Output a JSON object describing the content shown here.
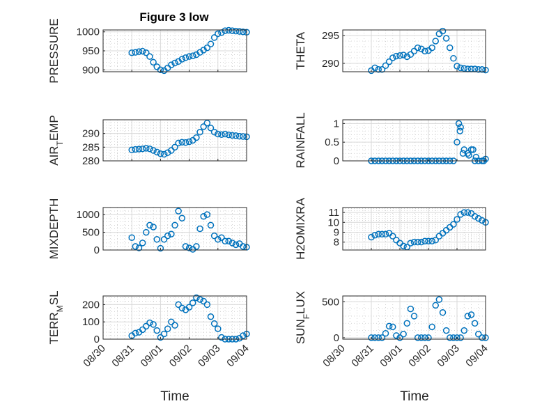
{
  "title": "Figure 3 low",
  "xlabel": "Time",
  "x_ticks": [
    "08/30",
    "08/31",
    "09/01",
    "09/02",
    "09/03",
    "09/04"
  ],
  "colors": {
    "marker": "#0072BD",
    "axes": "#262626"
  },
  "chart_data": [
    {
      "type": "scatter",
      "ylabel": "PRESSURE",
      "ylim": [
        895,
        1005
      ],
      "yticks": [
        "900",
        "950",
        "1000"
      ],
      "ytick_values": [
        900,
        950,
        1000
      ],
      "grid": true,
      "title": "Figure 3 low",
      "x": [
        "08/31 00:00",
        "08/31 03:00",
        "08/31 06:00",
        "08/31 09:00",
        "08/31 12:00",
        "08/31 15:00",
        "08/31 18:00",
        "08/31 21:00",
        "09/01 00:00",
        "09/01 03:00",
        "09/01 06:00",
        "09/01 09:00",
        "09/01 12:00",
        "09/01 15:00",
        "09/01 18:00",
        "09/01 21:00",
        "09/02 00:00",
        "09/02 03:00",
        "09/02 06:00",
        "09/02 09:00",
        "09/02 12:00",
        "09/02 15:00",
        "09/02 18:00",
        "09/02 21:00",
        "09/03 00:00",
        "09/03 03:00",
        "09/03 06:00",
        "09/03 09:00",
        "09/03 12:00",
        "09/03 15:00",
        "09/03 18:00",
        "09/03 21:00",
        "09/04 00:00"
      ],
      "values": [
        945,
        946,
        948,
        949,
        945,
        935,
        920,
        908,
        900,
        898,
        905,
        913,
        918,
        922,
        928,
        932,
        935,
        937,
        940,
        946,
        952,
        958,
        968,
        985,
        995,
        998,
        1003,
        1004,
        1003,
        1002,
        1001,
        1000,
        999
      ]
    },
    {
      "type": "scatter",
      "ylabel": "THETA",
      "ylim": [
        288.5,
        296
      ],
      "yticks": [
        "290",
        "295"
      ],
      "ytick_values": [
        290,
        295
      ],
      "grid": true,
      "x": [
        "08/31 00:00",
        "08/31 03:00",
        "08/31 06:00",
        "08/31 09:00",
        "08/31 12:00",
        "08/31 15:00",
        "08/31 18:00",
        "08/31 21:00",
        "09/01 00:00",
        "09/01 03:00",
        "09/01 06:00",
        "09/01 09:00",
        "09/01 12:00",
        "09/01 15:00",
        "09/01 18:00",
        "09/01 21:00",
        "09/02 00:00",
        "09/02 03:00",
        "09/02 06:00",
        "09/02 09:00",
        "09/02 12:00",
        "09/02 15:00",
        "09/02 18:00",
        "09/02 21:00",
        "09/03 00:00",
        "09/03 03:00",
        "09/03 06:00",
        "09/03 09:00",
        "09/03 12:00",
        "09/03 15:00",
        "09/03 18:00",
        "09/03 21:00",
        "09/04 00:00"
      ],
      "values": [
        288.7,
        289.2,
        288.9,
        288.9,
        289.6,
        290.3,
        291.0,
        291.3,
        291.4,
        291.5,
        291.2,
        291.6,
        292.2,
        292.8,
        292.6,
        292.2,
        292.3,
        292.8,
        294.0,
        295.3,
        295.8,
        294.5,
        292.8,
        290.9,
        289.5,
        289.2,
        289.1,
        289.0,
        289.0,
        289.0,
        288.9,
        288.9,
        288.8
      ]
    },
    {
      "type": "scatter",
      "ylabel": "AIR_TEMP",
      "ylim": [
        280,
        295
      ],
      "yticks": [
        "280",
        "285",
        "290"
      ],
      "ytick_values": [
        280,
        285,
        290
      ],
      "grid": true,
      "x": [
        "08/31 00:00",
        "08/31 03:00",
        "08/31 06:00",
        "08/31 09:00",
        "08/31 12:00",
        "08/31 15:00",
        "08/31 18:00",
        "08/31 21:00",
        "09/01 00:00",
        "09/01 03:00",
        "09/01 06:00",
        "09/01 09:00",
        "09/01 12:00",
        "09/01 15:00",
        "09/01 18:00",
        "09/01 21:00",
        "09/02 00:00",
        "09/02 03:00",
        "09/02 06:00",
        "09/02 09:00",
        "09/02 12:00",
        "09/02 15:00",
        "09/02 18:00",
        "09/02 21:00",
        "09/03 00:00",
        "09/03 03:00",
        "09/03 06:00",
        "09/03 09:00",
        "09/03 12:00",
        "09/03 15:00",
        "09/03 18:00",
        "09/03 21:00",
        "09/04 00:00"
      ],
      "values": [
        284.0,
        284.2,
        284.3,
        284.4,
        284.6,
        284.4,
        283.8,
        283.2,
        282.6,
        282.4,
        283.0,
        283.8,
        285.0,
        286.5,
        286.8,
        286.7,
        287.0,
        287.5,
        288.5,
        290.5,
        292.5,
        293.8,
        292.0,
        290.5,
        289.8,
        289.6,
        289.8,
        289.5,
        289.3,
        289.2,
        289.0,
        288.9,
        288.8
      ]
    },
    {
      "type": "scatter",
      "ylabel": "RAINFALL",
      "ylim": [
        0,
        1.1
      ],
      "yticks": [
        "0",
        "0.5",
        "1"
      ],
      "ytick_values": [
        0,
        0.5,
        1
      ],
      "grid": true,
      "x": [
        "08/31 00:00",
        "08/31 03:00",
        "08/31 06:00",
        "08/31 09:00",
        "08/31 12:00",
        "08/31 15:00",
        "08/31 18:00",
        "08/31 21:00",
        "09/01 00:00",
        "09/01 03:00",
        "09/01 06:00",
        "09/01 09:00",
        "09/01 12:00",
        "09/01 15:00",
        "09/01 18:00",
        "09/01 21:00",
        "09/02 00:00",
        "09/02 03:00",
        "09/02 06:00",
        "09/02 09:00",
        "09/02 12:00",
        "09/02 15:00",
        "09/02 18:00",
        "09/02 21:00",
        "09/03 00:00",
        "09/03 03:00",
        "09/03 06:00",
        "09/03 09:00",
        "09/03 12:00",
        "09/03 15:00",
        "09/03 18:00",
        "09/03 21:00",
        "09/04 00:00",
        "09/03 01:30",
        "09/03 02:30",
        "09/03 05:00",
        "09/03 10:00",
        "09/03 13:30",
        "09/03 16:00",
        "09/03 22:30"
      ],
      "values": [
        0,
        0,
        0,
        0,
        0,
        0,
        0,
        0,
        0,
        0,
        0,
        0,
        0,
        0,
        0,
        0,
        0,
        0,
        0,
        0,
        0,
        0,
        0,
        0,
        0.5,
        0.9,
        0.3,
        0.2,
        0.3,
        0,
        0,
        0,
        0.05,
        1.0,
        0.8,
        0.2,
        0.15,
        0.3,
        0.1,
        0
      ]
    },
    {
      "type": "scatter",
      "ylabel": "MIXDEPTH",
      "ylim": [
        0,
        1200
      ],
      "yticks": [
        "0",
        "500",
        "1000"
      ],
      "ytick_values": [
        0,
        500,
        1000
      ],
      "grid": true,
      "x": [
        "08/31 00:00",
        "08/31 03:00",
        "08/31 06:00",
        "08/31 09:00",
        "08/31 12:00",
        "08/31 15:00",
        "08/31 18:00",
        "08/31 21:00",
        "09/01 00:00",
        "09/01 03:00",
        "09/01 06:00",
        "09/01 09:00",
        "09/01 12:00",
        "09/01 15:00",
        "09/01 18:00",
        "09/01 21:00",
        "09/02 00:00",
        "09/02 03:00",
        "09/02 06:00",
        "09/02 09:00",
        "09/02 12:00",
        "09/02 15:00",
        "09/02 18:00",
        "09/02 21:00",
        "09/03 00:00",
        "09/03 03:00",
        "09/03 06:00",
        "09/03 09:00",
        "09/03 12:00",
        "09/03 15:00",
        "09/03 18:00",
        "09/03 21:00",
        "09/04 00:00"
      ],
      "values": [
        350,
        100,
        60,
        200,
        500,
        700,
        650,
        300,
        50,
        300,
        400,
        450,
        700,
        1100,
        900,
        100,
        60,
        20,
        100,
        600,
        950,
        1000,
        700,
        400,
        300,
        350,
        250,
        250,
        200,
        150,
        180,
        100,
        80
      ]
    },
    {
      "type": "scatter",
      "ylabel": "H2OMIXRA",
      "ylim": [
        7.2,
        11.5
      ],
      "yticks": [
        "8",
        "9",
        "10",
        "11"
      ],
      "ytick_values": [
        8,
        9,
        10,
        11
      ],
      "grid": true,
      "x": [
        "08/31 00:00",
        "08/31 03:00",
        "08/31 06:00",
        "08/31 09:00",
        "08/31 12:00",
        "08/31 15:00",
        "08/31 18:00",
        "08/31 21:00",
        "09/01 00:00",
        "09/01 03:00",
        "09/01 06:00",
        "09/01 09:00",
        "09/01 12:00",
        "09/01 15:00",
        "09/01 18:00",
        "09/01 21:00",
        "09/02 00:00",
        "09/02 03:00",
        "09/02 06:00",
        "09/02 09:00",
        "09/02 12:00",
        "09/02 15:00",
        "09/02 18:00",
        "09/02 21:00",
        "09/03 00:00",
        "09/03 03:00",
        "09/03 06:00",
        "09/03 09:00",
        "09/03 12:00",
        "09/03 15:00",
        "09/03 18:00",
        "09/03 21:00",
        "09/04 00:00"
      ],
      "values": [
        8.5,
        8.7,
        8.8,
        8.8,
        8.8,
        8.9,
        8.6,
        8.2,
        7.9,
        7.6,
        7.5,
        7.9,
        8.0,
        8.0,
        8.0,
        8.1,
        8.1,
        8.1,
        8.2,
        8.6,
        8.9,
        9.2,
        9.5,
        9.8,
        10.3,
        10.8,
        11.0,
        11.0,
        10.9,
        10.6,
        10.4,
        10.2,
        10.0
      ]
    },
    {
      "type": "scatter",
      "ylabel": "TERR_MSL",
      "ylim": [
        0,
        250
      ],
      "yticks": [
        "0",
        "100",
        "200"
      ],
      "ytick_values": [
        0,
        100,
        200
      ],
      "grid": true,
      "x": [
        "08/31 00:00",
        "08/31 03:00",
        "08/31 06:00",
        "08/31 09:00",
        "08/31 12:00",
        "08/31 15:00",
        "08/31 18:00",
        "08/31 21:00",
        "09/01 00:00",
        "09/01 03:00",
        "09/01 06:00",
        "09/01 09:00",
        "09/01 12:00",
        "09/01 15:00",
        "09/01 18:00",
        "09/01 21:00",
        "09/02 00:00",
        "09/02 03:00",
        "09/02 06:00",
        "09/02 09:00",
        "09/02 12:00",
        "09/02 15:00",
        "09/02 18:00",
        "09/02 21:00",
        "09/03 00:00",
        "09/03 03:00",
        "09/03 06:00",
        "09/03 09:00",
        "09/03 12:00",
        "09/03 15:00",
        "09/03 18:00",
        "09/03 21:00",
        "09/04 00:00"
      ],
      "values": [
        20,
        35,
        40,
        55,
        75,
        95,
        85,
        50,
        10,
        30,
        60,
        100,
        80,
        200,
        180,
        170,
        185,
        210,
        240,
        230,
        220,
        200,
        130,
        90,
        60,
        10,
        0,
        0,
        0,
        0,
        5,
        20,
        30
      ]
    },
    {
      "type": "scatter",
      "ylabel": "SUN_FLUX",
      "ylim": [
        -20,
        580
      ],
      "yticks": [
        "0",
        "500"
      ],
      "ytick_values": [
        0,
        500
      ],
      "grid": true,
      "x": [
        "08/31 00:00",
        "08/31 03:00",
        "08/31 06:00",
        "08/31 09:00",
        "08/31 12:00",
        "08/31 15:00",
        "08/31 18:00",
        "08/31 21:00",
        "09/01 00:00",
        "09/01 03:00",
        "09/01 06:00",
        "09/01 09:00",
        "09/01 12:00",
        "09/01 15:00",
        "09/01 18:00",
        "09/01 21:00",
        "09/02 00:00",
        "09/02 03:00",
        "09/02 06:00",
        "09/02 09:00",
        "09/02 12:00",
        "09/02 15:00",
        "09/02 18:00",
        "09/02 21:00",
        "09/03 00:00",
        "09/03 03:00",
        "09/03 06:00",
        "09/03 09:00",
        "09/03 12:00",
        "09/03 15:00",
        "09/03 18:00",
        "09/03 21:00",
        "09/04 00:00"
      ],
      "values": [
        0,
        0,
        0,
        0,
        60,
        160,
        150,
        30,
        0,
        50,
        200,
        400,
        300,
        0,
        0,
        0,
        0,
        150,
        450,
        530,
        350,
        100,
        0,
        0,
        0,
        0,
        100,
        300,
        320,
        200,
        50,
        0,
        0
      ]
    }
  ]
}
